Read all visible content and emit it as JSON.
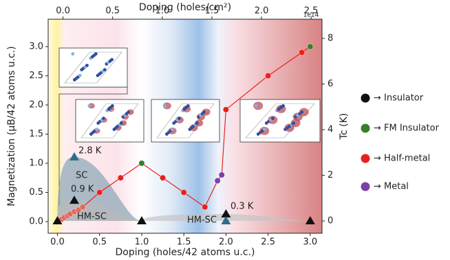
{
  "chart_data": {
    "type": "phase",
    "xlabel": "Doping (holes/42 atoms u.c.)",
    "x2label": "Doping (holes/cm²)",
    "x2_offset": "1e14",
    "ylabel": "Magnetization (μB/42 atoms u.c.)",
    "y2label": "Tc (K)",
    "xlim": [
      -0.11,
      3.14
    ],
    "x2lim": [
      -0.15,
      2.61
    ],
    "ylim": [
      -0.2,
      3.47
    ],
    "y2lim": [
      -0.54,
      8.84
    ],
    "xticks": [
      {
        "value": 0,
        "label": "0.0"
      },
      {
        "value": 0.5,
        "label": "0.5"
      },
      {
        "value": 1,
        "label": "1.0"
      },
      {
        "value": 1.5,
        "label": "1.5"
      },
      {
        "value": 2,
        "label": "2.0"
      },
      {
        "value": 2.5,
        "label": "2.5"
      },
      {
        "value": 3,
        "label": "3.0"
      }
    ],
    "x2ticks": [
      {
        "value": 0,
        "label": "0.0"
      },
      {
        "value": 0.5,
        "label": "0.5"
      },
      {
        "value": 1,
        "label": "1.0"
      },
      {
        "value": 1.5,
        "label": "1.5"
      },
      {
        "value": 2,
        "label": "2.0"
      },
      {
        "value": 2.5,
        "label": "2.5"
      }
    ],
    "yticks": [
      {
        "value": 0,
        "label": "0.0"
      },
      {
        "value": 0.5,
        "label": "0.5"
      },
      {
        "value": 1,
        "label": "1.0"
      },
      {
        "value": 1.5,
        "label": "1.5"
      },
      {
        "value": 2,
        "label": "2.0"
      },
      {
        "value": 2.5,
        "label": "2.5"
      },
      {
        "value": 3,
        "label": "3.0"
      }
    ],
    "y2ticks": [
      0,
      2,
      4,
      6,
      8
    ],
    "magnetization": {
      "x": [
        0,
        0.05,
        0.08,
        0.12,
        0.15,
        0.2,
        0.25,
        0.3,
        0.5,
        0.75,
        1.0,
        1.25,
        1.5,
        1.75,
        1.9,
        1.95,
        2.0,
        2.5,
        2.9,
        3.0
      ],
      "values": [
        0,
        0.04,
        0.07,
        0.1,
        0.13,
        0.17,
        0.2,
        0.25,
        0.5,
        0.75,
        1.0,
        0.75,
        0.5,
        0.25,
        0.7,
        0.8,
        1.92,
        2.5,
        2.9,
        3.0
      ],
      "colors": [
        "#111111",
        "#e06a5e",
        "#e06a5e",
        "#e06a5e",
        "#e06a5e",
        "#e06a5e",
        "#e06a5e",
        "#e06a5e",
        "#e8211c",
        "#e8211c",
        "#3a7d2a",
        "#e8211c",
        "#e8211c",
        "#e8211c",
        "#7e3fa8",
        "#7e3fa8",
        "#e8211c",
        "#e8211c",
        "#e8211c",
        "#3a7d2a"
      ],
      "line_color": "#e8211c"
    },
    "tc_markers": [
      {
        "color": "#111111",
        "x": [
          0,
          0.2,
          1.0,
          2.0,
          3.0
        ],
        "values": [
          0,
          0.9,
          0,
          0.3,
          0
        ]
      },
      {
        "color": "#2c6e8a",
        "x": [
          0.2,
          2.0
        ],
        "values": [
          2.8,
          0
        ]
      }
    ],
    "domes": [
      {
        "color": "#8aa5b5",
        "start": 0,
        "peak_x": 0.2,
        "peak": 2.8,
        "end": 1.0
      },
      {
        "color": "#b9b9b9",
        "start": 0,
        "peak_x": 0.2,
        "peak": 0.9,
        "end": 1.0
      },
      {
        "color": "#c4c4c4",
        "start": 1.0,
        "peak_x": 2.0,
        "peak": 0.3,
        "end": 3.0
      }
    ],
    "annotations": [
      {
        "text": "2.8 K",
        "color": "#2c5f8a"
      },
      {
        "text": "SC",
        "color": "#2c5f8a"
      },
      {
        "text": "0.9 K",
        "color": "#111111"
      },
      {
        "text": "HM-SC",
        "color": "#111111"
      },
      {
        "text": "HM-SC",
        "color": "#111111"
      },
      {
        "text": "0.3 K",
        "color": "#111111"
      }
    ],
    "legend": [
      {
        "label": "→ Insulator",
        "color": "#111111"
      },
      {
        "label": "→ FM Insulator",
        "color": "#3a7d2a"
      },
      {
        "label": "→ Half-metal",
        "color": "#e8211c"
      },
      {
        "label": "→ Metal",
        "color": "#7e3fa8"
      }
    ]
  }
}
